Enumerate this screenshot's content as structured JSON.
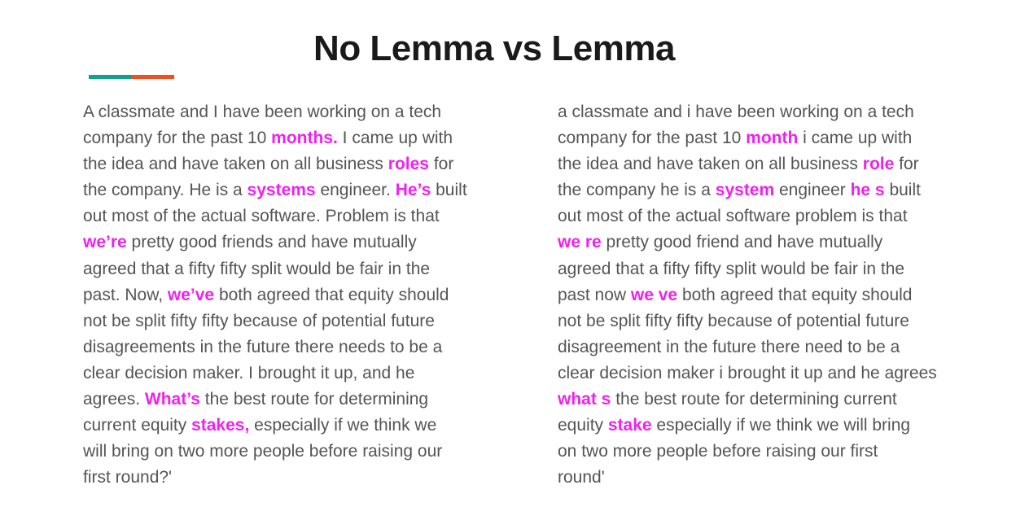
{
  "title": "No Lemma vs Lemma",
  "colors": {
    "accent_teal": "#14a08c",
    "accent_orange": "#f04e23",
    "highlight": "#ee22ee",
    "text": "#555555",
    "title": "#1a1a1a"
  },
  "left_column": {
    "lines": [
      [
        {
          "t": "A classmate and I have been working on a tech"
        }
      ],
      [
        {
          "t": "company for the past 10 "
        },
        {
          "t": "months.",
          "hl": true
        },
        {
          "t": " I came up with"
        }
      ],
      [
        {
          "t": "the idea and have taken on all business "
        },
        {
          "t": "roles",
          "hl": true
        },
        {
          "t": " for"
        }
      ],
      [
        {
          "t": "the company. He is a "
        },
        {
          "t": "systems",
          "hl": true
        },
        {
          "t": " engineer. "
        },
        {
          "t": "He’s",
          "hl": true
        },
        {
          "t": " built"
        }
      ],
      [
        {
          "t": "out most of the actual software. Problem is that"
        }
      ],
      [
        {
          "t": "we’re",
          "hl": true
        },
        {
          "t": " pretty good friends and have mutually"
        }
      ],
      [
        {
          "t": "agreed that a fifty fifty split would be fair in the"
        }
      ],
      [
        {
          "t": "past. Now, "
        },
        {
          "t": "we’ve",
          "hl": true
        },
        {
          "t": " both agreed that equity should"
        }
      ],
      [
        {
          "t": "not be split fifty fifty because of potential future"
        }
      ],
      [
        {
          "t": "disagreements in the future there needs to be a"
        }
      ],
      [
        {
          "t": "clear decision maker. I brought it up, and he"
        }
      ],
      [
        {
          "t": "agrees. "
        },
        {
          "t": "What’s",
          "hl": true
        },
        {
          "t": " the best route for determining"
        }
      ],
      [
        {
          "t": "current equity "
        },
        {
          "t": "stakes,",
          "hl": true
        },
        {
          "t": " especially if we think we"
        }
      ],
      [
        {
          "t": "will bring on two more people before raising our"
        }
      ],
      [
        {
          "t": "first round?'"
        }
      ]
    ]
  },
  "right_column": {
    "lines": [
      [
        {
          "t": "a classmate and i have been working on a tech"
        }
      ],
      [
        {
          "t": "company for the past 10 "
        },
        {
          "t": "month",
          "hl": true
        },
        {
          "t": " i came up with"
        }
      ],
      [
        {
          "t": "the idea and have taken on all business "
        },
        {
          "t": "role",
          "hl": true
        },
        {
          "t": " for"
        }
      ],
      [
        {
          "t": "the company he is a "
        },
        {
          "t": "system",
          "hl": true
        },
        {
          "t": " engineer "
        },
        {
          "t": "he s",
          "hl": true
        },
        {
          "t": " built"
        }
      ],
      [
        {
          "t": "out most of the actual software problem is that"
        }
      ],
      [
        {
          "t": "we re",
          "hl": true
        },
        {
          "t": " pretty good friend and have mutually"
        }
      ],
      [
        {
          "t": "agreed that a fifty fifty split would be fair in the"
        }
      ],
      [
        {
          "t": "past now "
        },
        {
          "t": "we ve",
          "hl": true
        },
        {
          "t": " both agreed that equity should"
        }
      ],
      [
        {
          "t": "not be split fifty fifty because of potential future"
        }
      ],
      [
        {
          "t": "disagreement in the future there need to be a"
        }
      ],
      [
        {
          "t": "clear decision maker i brought it up and he agrees"
        }
      ],
      [
        {
          "t": "what s",
          "hl": true
        },
        {
          "t": " the best route for determining current"
        }
      ],
      [
        {
          "t": "equity "
        },
        {
          "t": "stake",
          "hl": true
        },
        {
          "t": " especially if we think we will bring"
        }
      ],
      [
        {
          "t": "on two more people before raising our first"
        }
      ],
      [
        {
          "t": "round'"
        }
      ]
    ]
  }
}
